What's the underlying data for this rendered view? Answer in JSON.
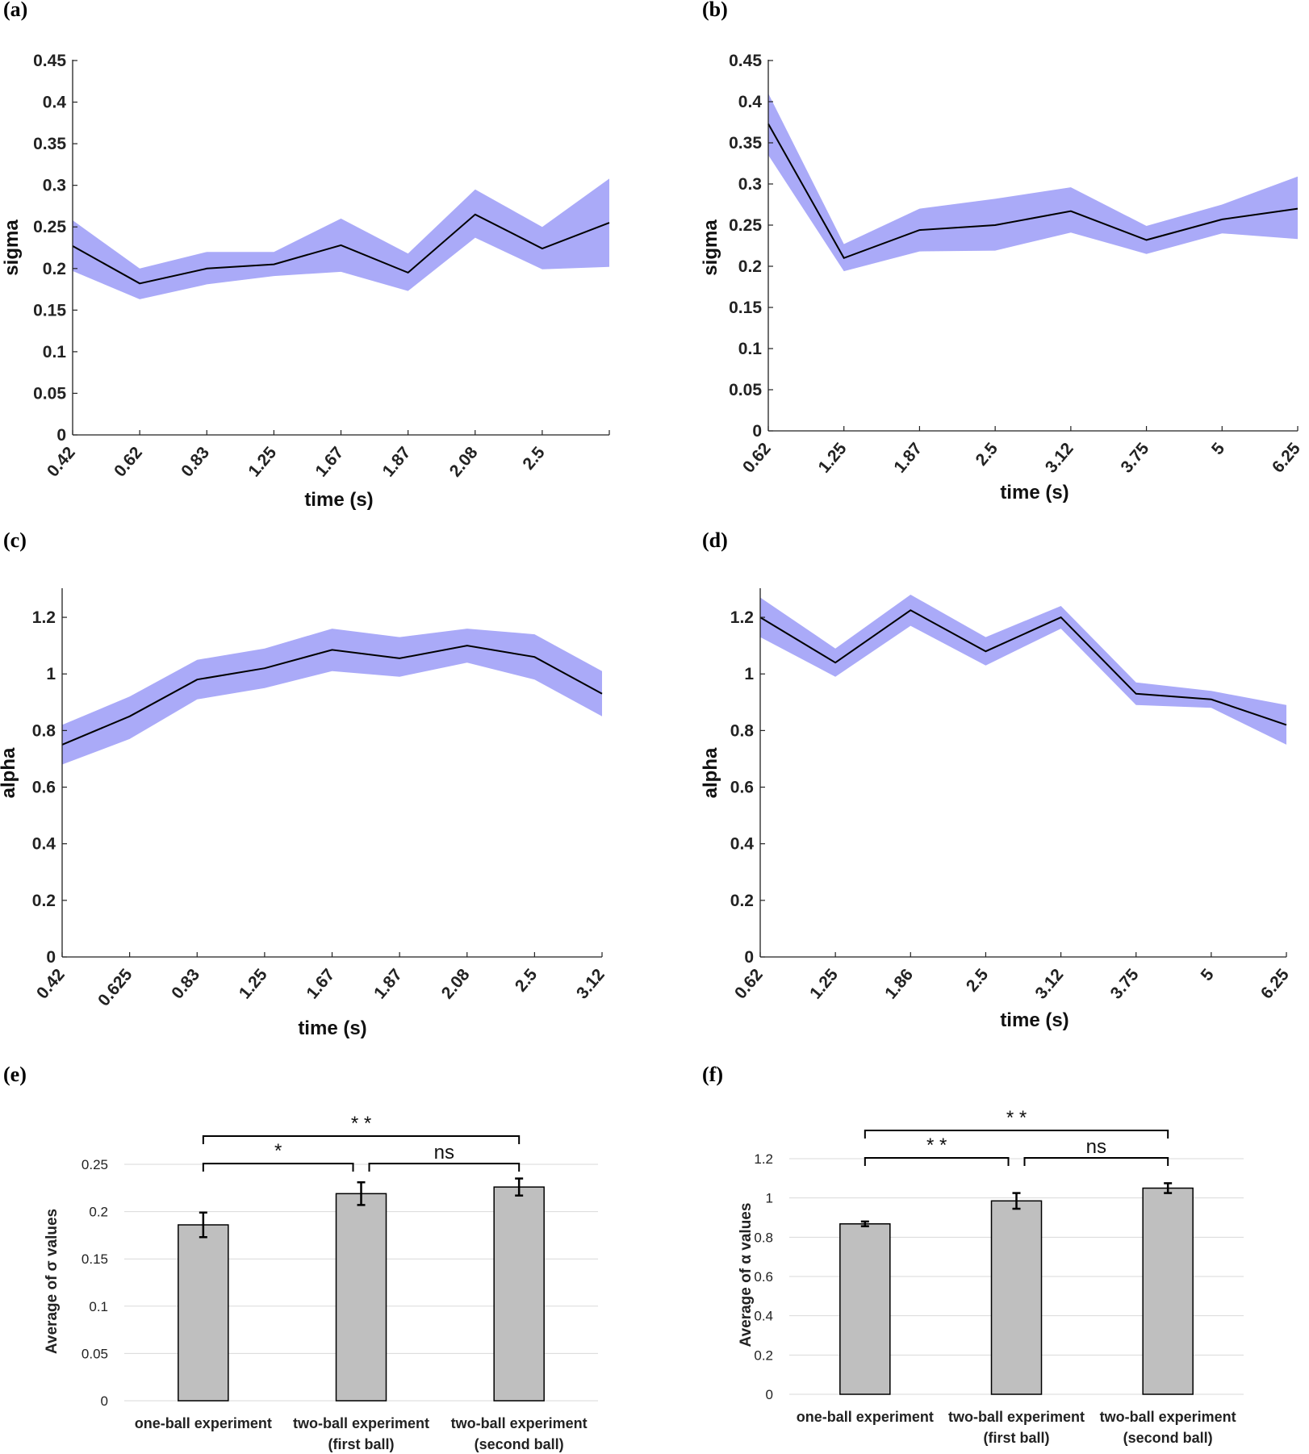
{
  "chart_data": [
    {
      "panel": "(a)",
      "type": "line",
      "categories": [
        "0.42",
        "0.62",
        "0.83",
        "1.25",
        "1.67",
        "1.87",
        "2.08",
        "2.5",
        ""
      ],
      "series": [
        {
          "name": "sigma",
          "values": [
            0.227,
            0.182,
            0.2,
            0.205,
            0.228,
            0.195,
            0.265,
            0.224,
            0.255
          ]
        }
      ],
      "band_upper": [
        0.258,
        0.2,
        0.22,
        0.22,
        0.26,
        0.218,
        0.295,
        0.25,
        0.308
      ],
      "band_lower": [
        0.197,
        0.163,
        0.181,
        0.191,
        0.196,
        0.173,
        0.237,
        0.199,
        0.202
      ],
      "yticks": [
        "0",
        "0.05",
        "0.1",
        "0.15",
        "0.2",
        "0.25",
        "0.3",
        "0.35",
        "0.4",
        "0.45"
      ],
      "ylim": [
        0,
        0.45
      ],
      "xlabel": "time (s)",
      "ylabel": "sigma"
    },
    {
      "panel": "(b)",
      "type": "line",
      "categories": [
        "0.62",
        "1.25",
        "1.87",
        "2.5",
        "3.12",
        "3.75",
        "5",
        "6.25"
      ],
      "series": [
        {
          "name": "sigma",
          "values": [
            0.373,
            0.21,
            0.244,
            0.25,
            0.267,
            0.232,
            0.257,
            0.27
          ]
        }
      ],
      "band_upper": [
        0.41,
        0.227,
        0.27,
        0.282,
        0.296,
        0.249,
        0.275,
        0.309
      ],
      "band_lower": [
        0.335,
        0.194,
        0.218,
        0.219,
        0.241,
        0.215,
        0.24,
        0.233
      ],
      "yticks": [
        "0",
        "0.05",
        "0.1",
        "0.15",
        "0.2",
        "0.25",
        "0.3",
        "0.35",
        "0.4",
        "0.45"
      ],
      "ylim": [
        0,
        0.45
      ],
      "xlabel": "time (s)",
      "ylabel": "sigma"
    },
    {
      "panel": "(c)",
      "type": "line",
      "categories": [
        "0.42",
        "0.625",
        "0.83",
        "1.25",
        "1.67",
        "1.87",
        "2.08",
        "2.5",
        "3.12"
      ],
      "series": [
        {
          "name": "alpha",
          "values": [
            0.75,
            0.85,
            0.98,
            1.02,
            1.085,
            1.055,
            1.1,
            1.06,
            0.93
          ]
        }
      ],
      "band_upper": [
        0.82,
        0.92,
        1.05,
        1.09,
        1.16,
        1.13,
        1.16,
        1.14,
        1.01
      ],
      "band_lower": [
        0.68,
        0.77,
        0.91,
        0.95,
        1.01,
        0.99,
        1.04,
        0.98,
        0.85
      ],
      "yticks": [
        "0",
        "0.2",
        "0.4",
        "0.6",
        "0.8",
        "1",
        "1.2"
      ],
      "ylim": [
        0,
        1.3
      ],
      "xlabel": "time (s)",
      "ylabel": "alpha"
    },
    {
      "panel": "(d)",
      "type": "line",
      "categories": [
        "0.62",
        "1.25",
        "1.86",
        "2.5",
        "3.12",
        "3.75",
        "5",
        "6.25"
      ],
      "series": [
        {
          "name": "alpha",
          "values": [
            1.2,
            1.04,
            1.225,
            1.08,
            1.2,
            0.93,
            0.91,
            0.82
          ]
        }
      ],
      "band_upper": [
        1.27,
        1.09,
        1.28,
        1.13,
        1.24,
        0.97,
        0.94,
        0.89
      ],
      "band_lower": [
        1.13,
        0.99,
        1.17,
        1.03,
        1.16,
        0.89,
        0.88,
        0.75
      ],
      "yticks": [
        "0",
        "0.2",
        "0.4",
        "0.6",
        "0.8",
        "1",
        "1.2"
      ],
      "ylim": [
        0,
        1.3
      ],
      "xlabel": "time (s)",
      "ylabel": "alpha"
    },
    {
      "panel": "(e)",
      "type": "bar",
      "categories": [
        "one-ball experiment",
        "two-ball experiment\n(first ball)",
        "two-ball experiment\n(second ball)"
      ],
      "values": [
        0.186,
        0.219,
        0.226
      ],
      "errors": [
        0.013,
        0.012,
        0.009
      ],
      "yticks": [
        "0",
        "0.05",
        "0.1",
        "0.15",
        "0.2",
        "0.25"
      ],
      "ylim": [
        0,
        0.25
      ],
      "ylabel": "Average of σ values",
      "significance": [
        {
          "from": 0,
          "to": 1,
          "label": "*"
        },
        {
          "from": 1,
          "to": 2,
          "label": "ns"
        },
        {
          "from": 0,
          "to": 2,
          "label": "**"
        }
      ]
    },
    {
      "panel": "(f)",
      "type": "bar",
      "categories": [
        "one-ball experiment",
        "two-ball experiment\n(first ball)",
        "two-ball experiment\n(second ball)"
      ],
      "values": [
        0.868,
        0.985,
        1.05
      ],
      "errors": [
        0.012,
        0.04,
        0.025
      ],
      "yticks": [
        "0",
        "0.2",
        "0.4",
        "0.6",
        "0.8",
        "1",
        "1.2"
      ],
      "ylim": [
        0,
        1.2
      ],
      "ylabel": "Average of α values",
      "significance": [
        {
          "from": 0,
          "to": 1,
          "label": "**"
        },
        {
          "from": 1,
          "to": 2,
          "label": "ns"
        },
        {
          "from": 0,
          "to": 2,
          "label": "**"
        }
      ]
    }
  ]
}
